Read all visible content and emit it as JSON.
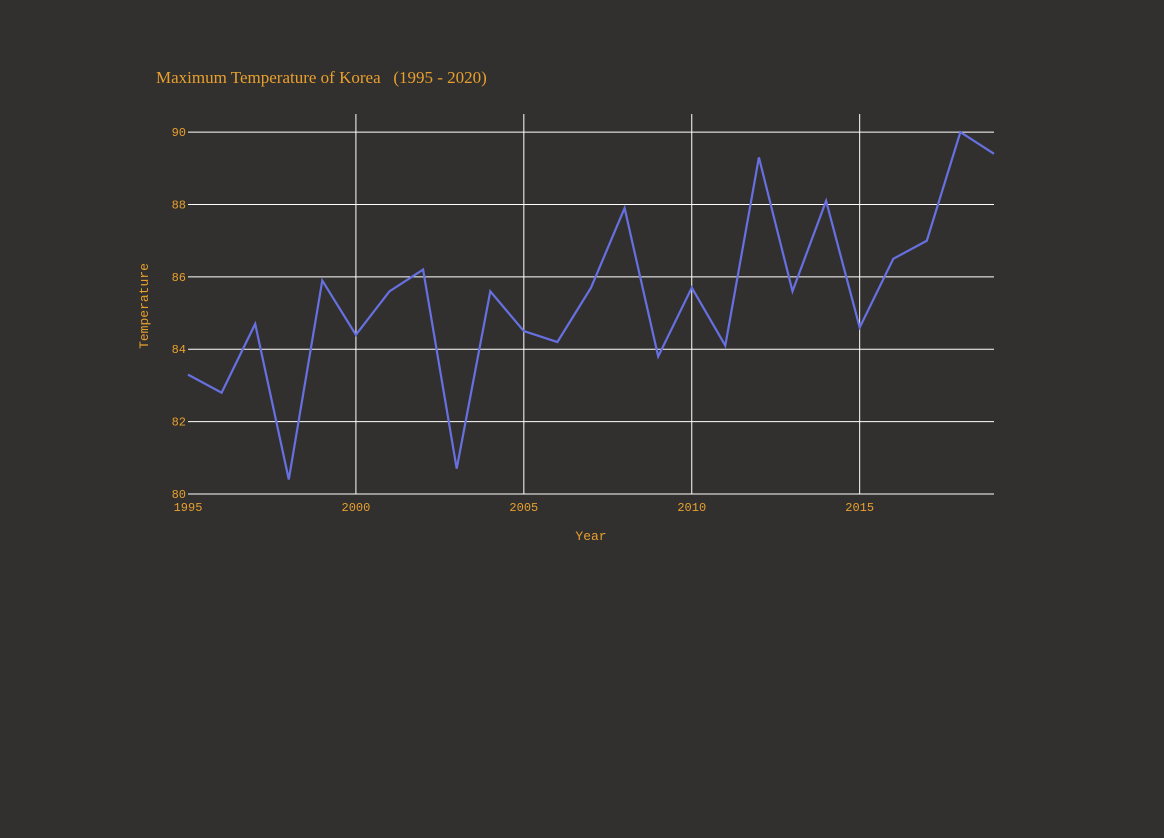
{
  "chart_data": {
    "type": "line",
    "title": "Maximum Temperature of Korea   (1995 - 2020)",
    "xlabel": "Year",
    "ylabel": "Temperature",
    "xlim": [
      1995,
      2019
    ],
    "ylim": [
      80,
      90.5
    ],
    "x_ticks": [
      1995,
      2000,
      2005,
      2010,
      2015
    ],
    "y_ticks": [
      80,
      82,
      84,
      86,
      88,
      90
    ],
    "grid": true,
    "legend": "none",
    "series": [
      {
        "x": [
          1995,
          1996,
          1997,
          1998,
          1999,
          2000,
          2001,
          2002,
          2003,
          2004,
          2005,
          2006,
          2007,
          2008,
          2009,
          2010,
          2011,
          2012,
          2013,
          2014,
          2015,
          2016,
          2017,
          2018,
          2019
        ],
        "values": [
          83.3,
          82.8,
          84.7,
          80.4,
          85.9,
          84.4,
          85.6,
          86.2,
          80.7,
          85.6,
          84.5,
          84.2,
          85.7,
          87.9,
          83.8,
          85.7,
          84.1,
          89.3,
          85.6,
          88.1,
          84.6,
          86.5,
          87.0,
          90.0,
          89.4
        ]
      }
    ]
  },
  "colors": {
    "background": "#32302f",
    "text": "#e8a02d",
    "grid": "#ffffff",
    "line": "#6670e0"
  }
}
